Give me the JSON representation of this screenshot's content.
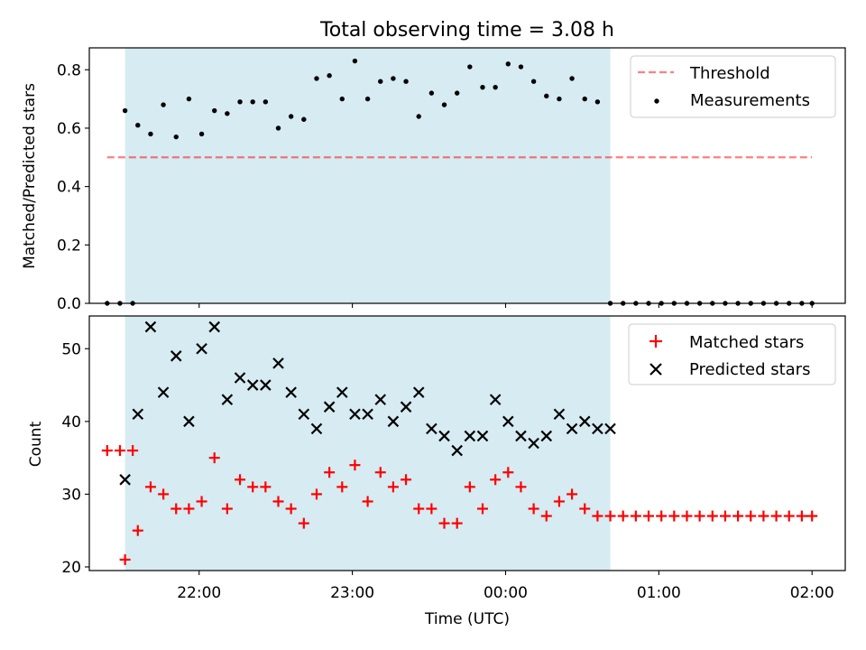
{
  "chart_data": [
    {
      "type": "scatter",
      "title": "Total observing time = 3.08 h",
      "xlabel": "",
      "ylabel": "Matched/Predicted stars",
      "xlim": [
        "21:17",
        "02:13"
      ],
      "ylim": [
        0,
        0.875
      ],
      "yticks": [
        0.0,
        0.2,
        0.4,
        0.6,
        0.8
      ],
      "yticklabels": [
        "0.0",
        "0.2",
        "0.4",
        "0.6",
        "0.8"
      ],
      "legend_position": "upper right",
      "shaded_span": [
        "21:31",
        "00:41"
      ],
      "shade_color": "#add8e6",
      "threshold": {
        "name": "Threshold",
        "value": 0.5,
        "x_range": [
          "21:24",
          "02:00"
        ],
        "color": "#ff0000",
        "style": "dashed"
      },
      "series": [
        {
          "name": "Measurements",
          "color": "#000000",
          "marker": "dot",
          "x": [
            "21:24",
            "21:29",
            "21:34",
            "21:31",
            "21:36",
            "21:41",
            "21:46",
            "21:51",
            "21:56",
            "22:01",
            "22:06",
            "22:11",
            "22:16",
            "22:21",
            "22:26",
            "22:31",
            "22:36",
            "22:41",
            "22:46",
            "22:51",
            "22:56",
            "23:01",
            "23:06",
            "23:11",
            "23:16",
            "23:21",
            "23:26",
            "23:31",
            "23:36",
            "23:41",
            "23:46",
            "23:51",
            "23:56",
            "00:01",
            "00:06",
            "00:11",
            "00:16",
            "00:21",
            "00:26",
            "00:31",
            "00:36",
            "00:41",
            "00:46",
            "00:51",
            "00:56",
            "01:01",
            "01:06",
            "01:11",
            "01:16",
            "01:21",
            "01:26",
            "01:31",
            "01:36",
            "01:41",
            "01:46",
            "01:51",
            "01:56",
            "02:00"
          ],
          "y": [
            0,
            0,
            0,
            0.66,
            0.61,
            0.58,
            0.68,
            0.57,
            0.7,
            0.58,
            0.66,
            0.65,
            0.69,
            0.69,
            0.69,
            0.6,
            0.64,
            0.63,
            0.77,
            0.78,
            0.7,
            0.83,
            0.7,
            0.76,
            0.77,
            0.76,
            0.64,
            0.72,
            0.68,
            0.72,
            0.81,
            0.74,
            0.74,
            0.82,
            0.81,
            0.76,
            0.71,
            0.7,
            0.77,
            0.7,
            0.69,
            0,
            0,
            0,
            0,
            0,
            0,
            0,
            0,
            0,
            0,
            0,
            0,
            0,
            0,
            0,
            0,
            0
          ]
        }
      ]
    },
    {
      "type": "scatter",
      "title": "",
      "xlabel": "Time (UTC)",
      "ylabel": "Count",
      "xlim": [
        "21:17",
        "02:13"
      ],
      "ylim": [
        19.5,
        54.5
      ],
      "yticks": [
        20,
        30,
        40,
        50
      ],
      "yticklabels": [
        "20",
        "30",
        "40",
        "50"
      ],
      "xticks": [
        "22:00",
        "23:00",
        "00:00",
        "01:00",
        "02:00"
      ],
      "legend_position": "upper right",
      "shaded_span": [
        "21:31",
        "00:41"
      ],
      "shade_color": "#add8e6",
      "series": [
        {
          "name": "Matched stars",
          "color": "#ff0000",
          "marker": "plus",
          "x": [
            "21:24",
            "21:29",
            "21:34",
            "21:31",
            "21:36",
            "21:41",
            "21:46",
            "21:51",
            "21:56",
            "22:01",
            "22:06",
            "22:11",
            "22:16",
            "22:21",
            "22:26",
            "22:31",
            "22:36",
            "22:41",
            "22:46",
            "22:51",
            "22:56",
            "23:01",
            "23:06",
            "23:11",
            "23:16",
            "23:21",
            "23:26",
            "23:31",
            "23:36",
            "23:41",
            "23:46",
            "23:51",
            "23:56",
            "00:01",
            "00:06",
            "00:11",
            "00:16",
            "00:21",
            "00:26",
            "00:31",
            "00:36",
            "00:41",
            "00:46",
            "00:51",
            "00:56",
            "01:01",
            "01:06",
            "01:11",
            "01:16",
            "01:21",
            "01:26",
            "01:31",
            "01:36",
            "01:41",
            "01:46",
            "01:51",
            "01:56",
            "02:00"
          ],
          "y": [
            36,
            36,
            36,
            21,
            25,
            31,
            30,
            28,
            28,
            29,
            35,
            28,
            32,
            31,
            31,
            29,
            28,
            26,
            30,
            33,
            31,
            34,
            29,
            33,
            31,
            32,
            28,
            28,
            26,
            26,
            31,
            28,
            32,
            33,
            31,
            28,
            27,
            29,
            30,
            28,
            27,
            27,
            27,
            27,
            27,
            27,
            27,
            27,
            27,
            27,
            27,
            27,
            27,
            27,
            27,
            27,
            27,
            27
          ]
        },
        {
          "name": "Predicted stars",
          "color": "#000000",
          "marker": "x",
          "x": [
            "21:31",
            "21:36",
            "21:41",
            "21:46",
            "21:51",
            "21:56",
            "22:01",
            "22:06",
            "22:11",
            "22:16",
            "22:21",
            "22:26",
            "22:31",
            "22:36",
            "22:41",
            "22:46",
            "22:51",
            "22:56",
            "23:01",
            "23:06",
            "23:11",
            "23:16",
            "23:21",
            "23:26",
            "23:31",
            "23:36",
            "23:41",
            "23:46",
            "23:51",
            "23:56",
            "00:01",
            "00:06",
            "00:11",
            "00:16",
            "00:21",
            "00:26",
            "00:31",
            "00:36",
            "00:41"
          ],
          "y": [
            32,
            41,
            53,
            44,
            49,
            40,
            50,
            53,
            43,
            46,
            45,
            45,
            48,
            44,
            41,
            39,
            42,
            44,
            41,
            41,
            43,
            40,
            42,
            44,
            39,
            38,
            36,
            38,
            38,
            43,
            40,
            38,
            37,
            38,
            41,
            39,
            40,
            39,
            39
          ]
        }
      ]
    }
  ]
}
